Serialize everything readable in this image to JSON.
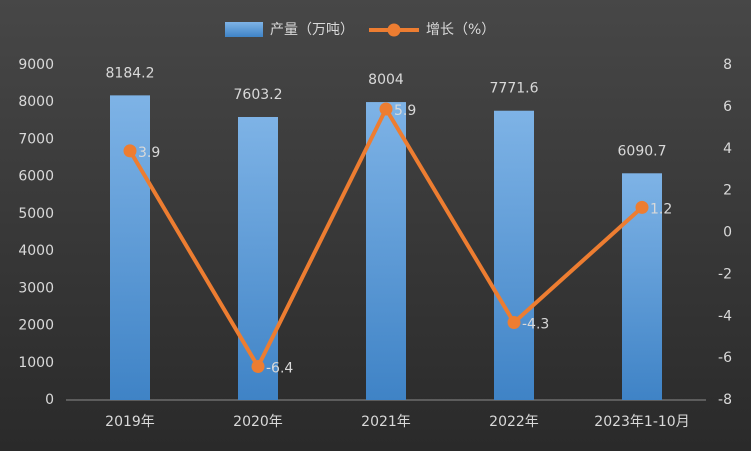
{
  "chart_data": {
    "type": "bar",
    "categories": [
      "2019年",
      "2020年",
      "2021年",
      "2022年",
      "2023年1-10月"
    ],
    "series": [
      {
        "name": "产量（万吨）",
        "type": "bar",
        "color": "#5b9bd5",
        "values": [
          8184.2,
          7603.2,
          8004,
          7771.6,
          6090.7
        ]
      },
      {
        "name": "增长（%）",
        "type": "line",
        "axis": "y2",
        "color": "#ed7d31",
        "values": [
          3.9,
          -6.4,
          5.9,
          -4.3,
          1.2
        ]
      }
    ],
    "ylim": [
      0,
      9000
    ],
    "yticks": [
      0,
      1000,
      2000,
      3000,
      4000,
      5000,
      6000,
      7000,
      8000,
      9000
    ],
    "y2lim": [
      -8,
      8
    ],
    "y2ticks": [
      -8,
      -6,
      -4,
      -2,
      0,
      2,
      4,
      6,
      8
    ],
    "grid": false
  }
}
